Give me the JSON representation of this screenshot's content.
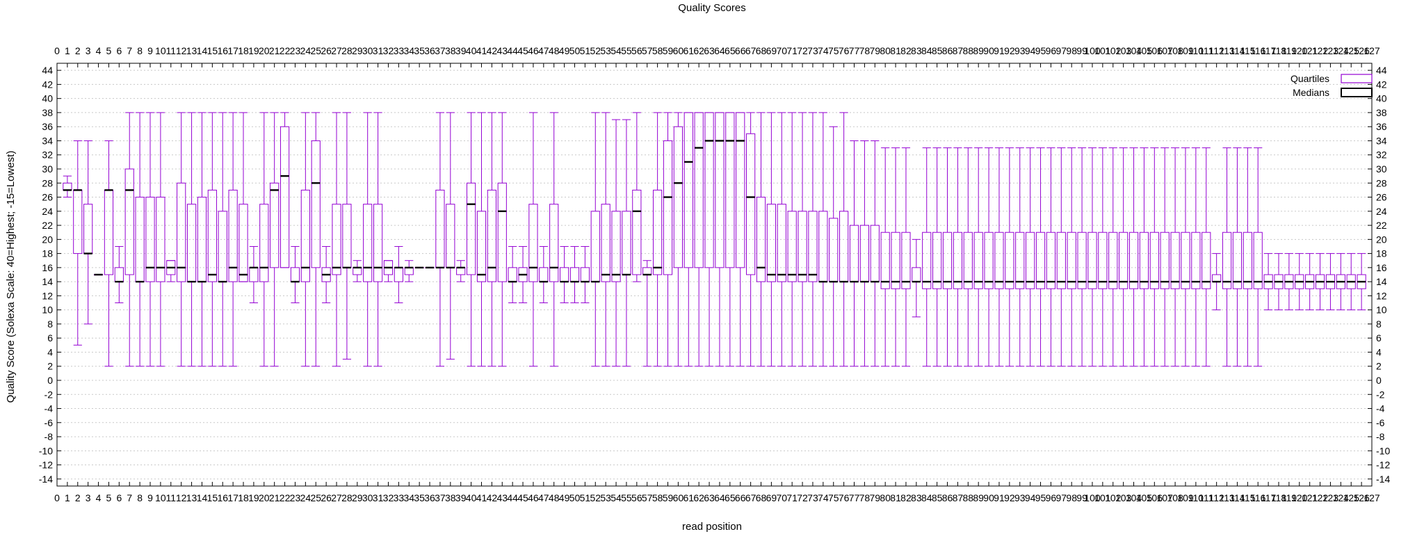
{
  "chart_data": {
    "type": "box",
    "title": "Quality Scores",
    "xlabel": "read position",
    "ylabel": "Quality Score (Solexa Scale: 40=Highest; -15=Lowest)",
    "xlim": [
      0,
      127
    ],
    "ylim": [
      -15,
      45
    ],
    "y_ticks": [
      -14,
      -12,
      -10,
      -8,
      -6,
      -4,
      -2,
      0,
      2,
      4,
      6,
      8,
      10,
      12,
      14,
      16,
      18,
      20,
      22,
      24,
      26,
      28,
      30,
      32,
      34,
      36,
      38,
      40,
      42,
      44
    ],
    "grid": true,
    "legend_position": "top-right",
    "legend": {
      "quartiles": "Quartiles",
      "medians": "Medians"
    },
    "colors": {
      "box": "#9400d3",
      "median": "#000000",
      "grid": "#c8c8c8"
    },
    "positions": [
      1,
      2,
      3,
      4,
      5,
      6,
      7,
      8,
      9,
      10,
      11,
      12,
      13,
      14,
      15,
      16,
      17,
      18,
      19,
      20,
      21,
      22,
      23,
      24,
      25,
      26,
      27,
      28,
      29,
      30,
      31,
      32,
      33,
      34,
      35,
      36,
      37,
      38,
      39,
      40,
      41,
      42,
      43,
      44,
      45,
      46,
      47,
      48,
      49,
      50,
      51,
      52,
      53,
      54,
      55,
      56,
      57,
      58,
      59,
      60,
      61,
      62,
      63,
      64,
      65,
      66,
      67,
      68,
      69,
      70,
      71,
      72,
      73,
      74,
      75,
      76,
      77,
      78,
      79,
      80,
      81,
      82,
      83,
      84,
      85,
      86,
      87,
      88,
      89,
      90,
      91,
      92,
      93,
      94,
      95,
      96,
      97,
      98,
      99,
      100,
      101,
      102,
      103,
      104,
      105,
      106,
      107,
      108,
      109,
      110,
      111,
      112,
      113,
      114,
      115,
      116,
      117,
      118,
      119,
      120,
      121,
      122,
      123,
      124,
      125,
      126
    ],
    "series": [
      {
        "name": "Quartiles",
        "low": [
          26,
          5,
          8,
          15,
          2,
          11,
          2,
          2,
          2,
          2,
          14,
          2,
          2,
          2,
          2,
          2,
          2,
          14,
          11,
          2,
          2,
          16,
          11,
          2,
          2,
          11,
          2,
          3,
          14,
          2,
          2,
          14,
          11,
          14,
          16,
          16,
          2,
          3,
          14,
          2,
          2,
          2,
          2,
          11,
          11,
          2,
          11,
          2,
          11,
          11,
          11,
          2,
          2,
          2,
          2,
          14,
          2,
          2,
          2,
          2,
          2,
          2,
          2,
          2,
          2,
          2,
          2,
          2,
          2,
          2,
          2,
          2,
          2,
          2,
          2,
          2,
          2,
          2,
          2,
          2,
          2,
          2,
          9,
          2,
          2,
          2,
          2,
          2,
          2,
          2,
          2,
          2,
          2,
          2,
          2,
          2,
          2,
          2,
          2,
          2,
          2,
          2,
          2,
          2,
          2,
          2,
          2,
          2,
          2,
          2,
          2,
          10,
          2,
          2,
          2,
          2,
          10,
          10,
          10,
          10,
          10,
          10,
          10,
          10,
          10,
          10
        ],
        "q1": [
          27,
          18,
          18,
          15,
          15,
          14,
          15,
          14,
          14,
          14,
          15,
          14,
          14,
          14,
          14,
          14,
          14,
          14,
          14,
          14,
          16,
          16,
          14,
          14,
          16,
          14,
          15,
          16,
          15,
          14,
          14,
          15,
          14,
          15,
          16,
          16,
          16,
          16,
          15,
          15,
          14,
          14,
          14,
          14,
          14,
          14,
          14,
          14,
          14,
          14,
          14,
          14,
          14,
          14,
          15,
          15,
          15,
          15,
          15,
          16,
          16,
          16,
          16,
          16,
          16,
          16,
          15,
          14,
          14,
          14,
          14,
          14,
          14,
          14,
          14,
          14,
          14,
          14,
          14,
          13,
          13,
          13,
          14,
          13,
          13,
          13,
          13,
          13,
          13,
          13,
          13,
          13,
          13,
          13,
          13,
          13,
          13,
          13,
          13,
          13,
          13,
          13,
          13,
          13,
          13,
          13,
          13,
          13,
          13,
          13,
          13,
          14,
          13,
          13,
          13,
          13,
          13,
          13,
          13,
          13,
          13,
          13,
          13,
          13,
          13,
          13
        ],
        "median": [
          27,
          27,
          18,
          15,
          27,
          14,
          27,
          14,
          16,
          16,
          16,
          16,
          14,
          14,
          15,
          14,
          16,
          15,
          16,
          16,
          27,
          29,
          14,
          16,
          28,
          15,
          16,
          16,
          16,
          16,
          16,
          16,
          16,
          16,
          16,
          16,
          16,
          16,
          16,
          25,
          15,
          16,
          24,
          14,
          15,
          16,
          14,
          16,
          14,
          14,
          14,
          14,
          15,
          15,
          15,
          24,
          15,
          16,
          26,
          28,
          31,
          33,
          34,
          34,
          34,
          34,
          26,
          16,
          15,
          15,
          15,
          15,
          15,
          14,
          14,
          14,
          14,
          14,
          14,
          14,
          14,
          14,
          14,
          14,
          14,
          14,
          14,
          14,
          14,
          14,
          14,
          14,
          14,
          14,
          14,
          14,
          14,
          14,
          14,
          14,
          14,
          14,
          14,
          14,
          14,
          14,
          14,
          14,
          14,
          14,
          14,
          14,
          14,
          14,
          14,
          14,
          14,
          14,
          14,
          14,
          14,
          14,
          14,
          14,
          14,
          14
        ],
        "q3": [
          28,
          27,
          25,
          15,
          27,
          16,
          30,
          26,
          26,
          26,
          17,
          28,
          25,
          26,
          27,
          24,
          27,
          25,
          16,
          25,
          28,
          36,
          16,
          27,
          34,
          16,
          25,
          25,
          16,
          25,
          25,
          17,
          16,
          16,
          16,
          16,
          27,
          25,
          16,
          28,
          24,
          27,
          28,
          16,
          16,
          25,
          16,
          25,
          16,
          16,
          16,
          24,
          25,
          24,
          24,
          27,
          16,
          27,
          34,
          36,
          38,
          38,
          38,
          38,
          38,
          38,
          35,
          26,
          25,
          25,
          24,
          24,
          24,
          24,
          23,
          24,
          22,
          22,
          22,
          21,
          21,
          21,
          16,
          21,
          21,
          21,
          21,
          21,
          21,
          21,
          21,
          21,
          21,
          21,
          21,
          21,
          21,
          21,
          21,
          21,
          21,
          21,
          21,
          21,
          21,
          21,
          21,
          21,
          21,
          21,
          21,
          15,
          21,
          21,
          21,
          21,
          15,
          15,
          15,
          15,
          15,
          15,
          15,
          15,
          15,
          15
        ],
        "high": [
          29,
          34,
          34,
          15,
          34,
          19,
          38,
          38,
          38,
          38,
          17,
          38,
          38,
          38,
          38,
          38,
          38,
          38,
          19,
          38,
          38,
          38,
          19,
          38,
          38,
          19,
          38,
          38,
          17,
          38,
          38,
          17,
          19,
          17,
          16,
          16,
          38,
          38,
          17,
          38,
          38,
          38,
          38,
          19,
          19,
          38,
          19,
          38,
          19,
          19,
          19,
          38,
          38,
          37,
          37,
          38,
          17,
          38,
          38,
          38,
          38,
          38,
          38,
          38,
          38,
          38,
          38,
          38,
          38,
          38,
          38,
          38,
          38,
          38,
          36,
          38,
          34,
          34,
          34,
          33,
          33,
          33,
          20,
          33,
          33,
          33,
          33,
          33,
          33,
          33,
          33,
          33,
          33,
          33,
          33,
          33,
          33,
          33,
          33,
          33,
          33,
          33,
          33,
          33,
          33,
          33,
          33,
          33,
          33,
          33,
          33,
          18,
          33,
          33,
          33,
          33,
          18,
          18,
          18,
          18,
          18,
          18,
          18,
          18,
          18,
          18
        ]
      }
    ]
  }
}
